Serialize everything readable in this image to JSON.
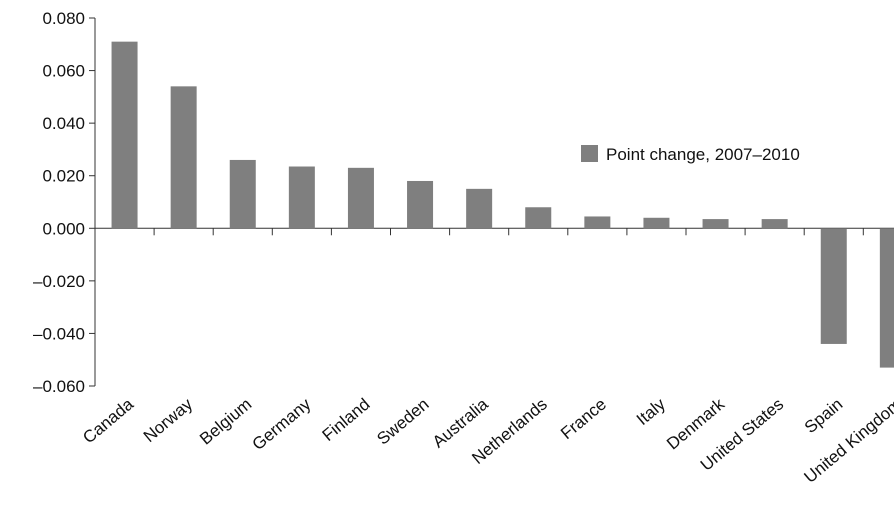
{
  "chart_data": {
    "type": "bar",
    "categories": [
      "Canada",
      "Norway",
      "Belgium",
      "Germany",
      "Finland",
      "Sweden",
      "Australia",
      "Netherlands",
      "France",
      "Italy",
      "Denmark",
      "United States",
      "Spain",
      "United Kingdom"
    ],
    "series": [
      {
        "name": "Point change, 2007–2010",
        "values": [
          0.071,
          0.054,
          0.026,
          0.0235,
          0.023,
          0.018,
          0.015,
          0.008,
          0.0045,
          0.004,
          0.0035,
          0.0035,
          -0.044,
          -0.053
        ],
        "color": "#7f7f7f"
      }
    ],
    "ylim": [
      -0.06,
      0.08
    ],
    "yticks": [
      "0.080",
      "0.060",
      "0.040",
      "0.020",
      "0.000",
      "–0.020",
      "–0.040",
      "–0.060"
    ],
    "ytick_values": [
      0.08,
      0.06,
      0.04,
      0.02,
      0.0,
      -0.02,
      -0.04,
      -0.06
    ],
    "grid": false,
    "legend_position": "right"
  }
}
